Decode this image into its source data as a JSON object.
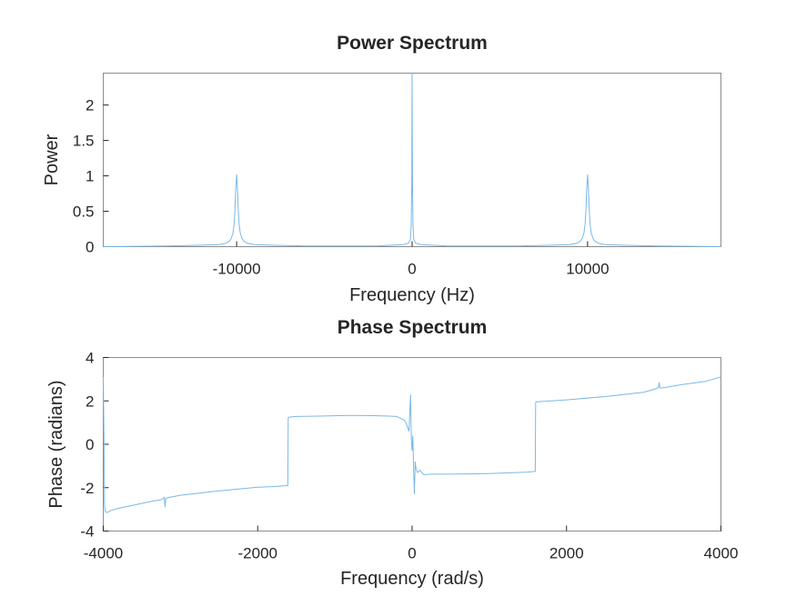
{
  "chart_data": [
    {
      "type": "line",
      "title": "Power Spectrum",
      "xlabel": "Frequency (Hz)",
      "ylabel": "Power",
      "xlim": [
        -17600,
        17600
      ],
      "ylim": [
        0,
        2.45
      ],
      "xticks": [
        -10000,
        0,
        10000
      ],
      "xtick_labels": [
        "-10000",
        "0",
        "10000"
      ],
      "yticks": [
        0,
        0.5,
        1,
        1.5,
        2
      ],
      "ytick_labels": [
        "0",
        "0.5",
        "1",
        "1.5",
        "2"
      ],
      "grid": false,
      "series_color": "#7ab8e6",
      "series": [
        {
          "x": [
            -17600,
            -14000,
            -12000,
            -11000,
            -10600,
            -10400,
            -10300,
            -10200,
            -10150,
            -10100,
            -10050,
            -10000,
            -9950,
            -9900,
            -9850,
            -9800,
            -9700,
            -9600,
            -9400,
            -9000,
            -8000,
            -6000,
            -2000,
            -500,
            -200,
            -100,
            -50,
            -20,
            0,
            20,
            50,
            100,
            200,
            500,
            2000,
            6000,
            8000,
            9000,
            9400,
            9600,
            9700,
            9800,
            9850,
            9900,
            9950,
            10000,
            10050,
            10100,
            10150,
            10200,
            10300,
            10400,
            10600,
            11000,
            12000,
            14000,
            17600
          ],
          "y": [
            0.0,
            0.01,
            0.02,
            0.03,
            0.05,
            0.08,
            0.12,
            0.2,
            0.3,
            0.5,
            0.8,
            1.02,
            0.8,
            0.5,
            0.3,
            0.2,
            0.12,
            0.08,
            0.05,
            0.03,
            0.02,
            0.01,
            0.01,
            0.03,
            0.05,
            0.1,
            0.3,
            0.9,
            2.45,
            0.9,
            0.3,
            0.1,
            0.05,
            0.03,
            0.01,
            0.01,
            0.02,
            0.03,
            0.05,
            0.08,
            0.12,
            0.2,
            0.3,
            0.5,
            0.8,
            1.02,
            0.8,
            0.5,
            0.3,
            0.2,
            0.12,
            0.08,
            0.05,
            0.03,
            0.02,
            0.01,
            0.0
          ]
        }
      ]
    },
    {
      "type": "line",
      "title": "Phase Spectrum",
      "xlabel": "Frequency (rad/s)",
      "ylabel": "Phase (radians)",
      "xlim": [
        -4000,
        4000
      ],
      "ylim": [
        -4,
        4
      ],
      "xticks": [
        -4000,
        -2000,
        0,
        2000,
        4000
      ],
      "xtick_labels": [
        "-4000",
        "-2000",
        "0",
        "2000",
        "4000"
      ],
      "yticks": [
        -4,
        -2,
        0,
        2,
        4
      ],
      "ytick_labels": [
        "-4",
        "-2",
        "0",
        "2",
        "4"
      ],
      "grid": false,
      "series_color": "#7ab8e6",
      "series": [
        {
          "x": [
            -4000,
            -3990,
            -3985,
            -3975,
            -3950,
            -3900,
            -3800,
            -3600,
            -3400,
            -3250,
            -3210,
            -3200,
            -3190,
            -3150,
            -3000,
            -2500,
            -2000,
            -1800,
            -1610,
            -1605,
            -1600,
            -1500,
            -1200,
            -800,
            -500,
            -300,
            -200,
            -150,
            -100,
            -80,
            -60,
            -40,
            -30,
            -20,
            -10,
            0,
            10,
            20,
            30,
            40,
            50,
            70,
            100,
            150,
            250,
            500,
            1000,
            1500,
            1595,
            1600,
            1605,
            1700,
            2000,
            2500,
            3000,
            3150,
            3190,
            3200,
            3210,
            3250,
            3500,
            3800,
            3990,
            4000
          ],
          "y": [
            3.1,
            0.5,
            -2.8,
            -3.1,
            -3.15,
            -3.05,
            -2.95,
            -2.8,
            -2.65,
            -2.55,
            -2.45,
            -2.9,
            -2.5,
            -2.45,
            -2.35,
            -2.15,
            -1.98,
            -1.95,
            -1.9,
            1.2,
            1.25,
            1.28,
            1.3,
            1.33,
            1.32,
            1.3,
            1.28,
            1.2,
            1.1,
            1.0,
            0.8,
            0.6,
            1.5,
            2.3,
            0.2,
            -0.3,
            0.4,
            -1.2,
            -2.3,
            -0.8,
            -1.1,
            -1.3,
            -1.2,
            -1.4,
            -1.38,
            -1.38,
            -1.35,
            -1.28,
            -1.25,
            1.9,
            1.95,
            1.98,
            2.05,
            2.2,
            2.4,
            2.55,
            2.62,
            2.85,
            2.6,
            2.6,
            2.75,
            2.9,
            3.1,
            3.15
          ]
        }
      ]
    }
  ]
}
